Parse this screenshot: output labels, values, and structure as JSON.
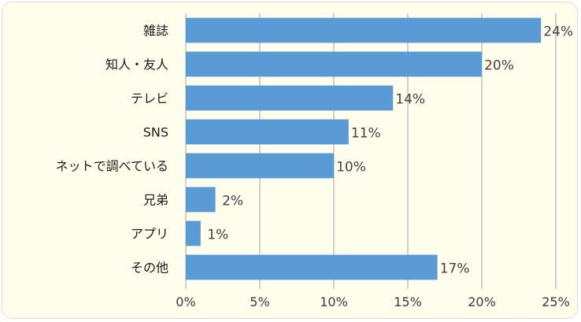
{
  "chart_data": {
    "type": "bar",
    "orientation": "horizontal",
    "categories": [
      "雑誌",
      "知人・友人",
      "テレビ",
      "SNS",
      "ネットで調べている",
      "兄弟",
      "アプリ",
      "その他"
    ],
    "values": [
      24,
      20,
      14,
      11,
      10,
      2,
      1,
      17
    ],
    "data_labels": [
      "24%",
      "20%",
      "14%",
      "11%",
      "10%",
      "2%",
      "1%",
      "17%"
    ],
    "xlim": [
      0,
      25
    ],
    "x_ticks": [
      0,
      5,
      10,
      15,
      20,
      25
    ],
    "x_tick_labels": [
      "0%",
      "5%",
      "10%",
      "15%",
      "20%",
      "25%"
    ],
    "title": "",
    "xlabel": "",
    "ylabel": "",
    "grid": "vertical",
    "legend": "none",
    "colors": {
      "bar": "#5b9bd5",
      "grid": "#d0d0d0",
      "background": "#fffdeb"
    }
  }
}
